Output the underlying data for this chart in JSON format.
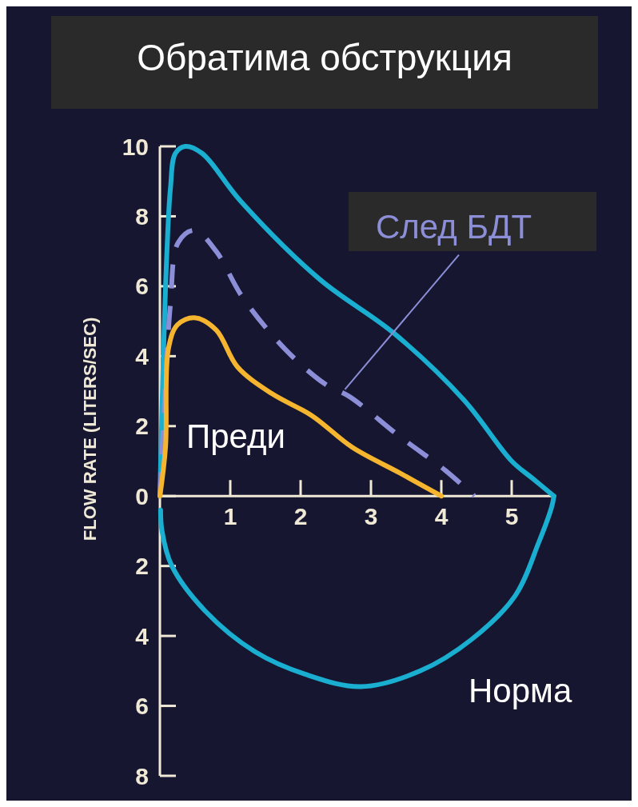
{
  "chart_data": {
    "type": "line",
    "title": "Обратима обструкция",
    "ylabel": "FLOW RATE (LITERS/SEC)",
    "xlim": [
      0,
      5.6
    ],
    "xticks": [
      1,
      2,
      3,
      4,
      5
    ],
    "ylim": [
      -8,
      10
    ],
    "yticks": [
      {
        "value": -8,
        "label": "8"
      },
      {
        "value": -6,
        "label": "6"
      },
      {
        "value": -4,
        "label": "4"
      },
      {
        "value": -2,
        "label": "2"
      },
      0,
      2,
      4,
      6,
      8,
      10
    ],
    "grid": false,
    "legend": false,
    "series": [
      {
        "color": "#1aaed0",
        "line_style": "solid",
        "x": [
          0,
          0.05,
          0.1,
          0.15,
          0.22,
          0.36,
          0.6,
          1.14,
          2.27,
          3.33,
          4.32,
          5.0,
          5.3,
          5.6
        ],
        "values": [
          0,
          4,
          7,
          8.8,
          9.8,
          10,
          9.8,
          8.45,
          6.2,
          4.65,
          2.75,
          1.0,
          0.5,
          0
        ]
      },
      {
        "name": "Норма",
        "color": "#1aaed0",
        "line_style": "solid",
        "x": [
          0.01,
          0.03,
          0.17,
          0.65,
          1.35,
          2.07,
          2.86,
          3.7,
          4.43,
          5.05,
          5.38,
          5.57,
          5.6
        ],
        "values": [
          -0.4,
          -1,
          -2,
          -3.3,
          -4.45,
          -5.1,
          -5.45,
          -5.0,
          -4.1,
          -2.85,
          -1.35,
          -0.3,
          0
        ]
      },
      {
        "name": "След БДТ",
        "color": "#8c8fd8",
        "line_style": "dashed",
        "x": [
          0,
          0.05,
          0.15,
          0.26,
          0.49,
          0.8,
          1.17,
          1.78,
          2.35,
          2.69,
          3.41,
          4.06,
          4.47
        ],
        "values": [
          0,
          2,
          5.5,
          7.25,
          7.6,
          7.0,
          5.7,
          4.2,
          3.2,
          2.85,
          1.7,
          0.73,
          0
        ]
      },
      {
        "name": "Преди",
        "color": "#f5b52e",
        "line_style": "solid",
        "x": [
          0,
          0.08,
          0.12,
          0.25,
          0.49,
          0.8,
          1.1,
          1.59,
          2.16,
          2.73,
          3.41,
          4.0
        ],
        "values": [
          0,
          1.4,
          4.2,
          4.9,
          5.1,
          4.75,
          3.7,
          2.93,
          2.3,
          1.4,
          0.66,
          0
        ]
      }
    ]
  }
}
